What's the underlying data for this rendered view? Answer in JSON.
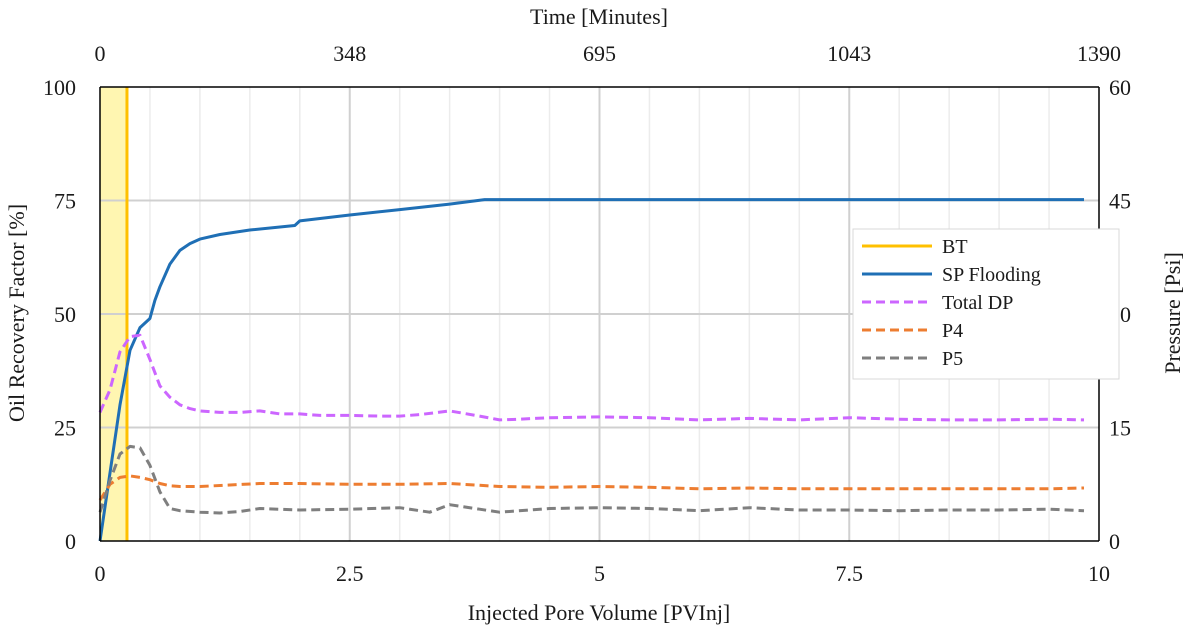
{
  "chart_data": {
    "type": "line",
    "title": "",
    "xlabel": "Injected Pore Volume [PVInj]",
    "ylabel": "Oil Recovery Factor [%]",
    "y2label": "Pressure [Psi]",
    "x2label": "Time [Minutes]",
    "xlim": [
      0,
      10
    ],
    "ylim": [
      0,
      100
    ],
    "y2lim": [
      0,
      60
    ],
    "x_ticks": [
      "0",
      "2.5",
      "5",
      "7.5",
      "10"
    ],
    "y_ticks": [
      "0",
      "25",
      "50",
      "75",
      "100"
    ],
    "y2_ticks": [
      "0",
      "15",
      "30",
      "45",
      "60"
    ],
    "x2_ticks": [
      "0",
      "348",
      "695",
      "1043",
      "1390"
    ],
    "grid": true,
    "legend_position": "right",
    "bt_region": [
      0,
      0.27
    ],
    "series": [
      {
        "name": "BT",
        "axis": "vertical-line",
        "color": "#FFC000",
        "style": "solid",
        "x": [
          0.27
        ]
      },
      {
        "name": "SP Flooding",
        "axis": "left",
        "color": "#1F6FB5",
        "style": "solid",
        "x": [
          0,
          0.1,
          0.2,
          0.3,
          0.4,
          0.5,
          0.55,
          0.6,
          0.7,
          0.8,
          0.9,
          1.0,
          1.2,
          1.5,
          1.95,
          2.0,
          2.5,
          3.0,
          3.5,
          3.85,
          4.0,
          5,
          6,
          7,
          8,
          9,
          9.85
        ],
        "y": [
          0,
          15,
          30,
          42,
          47,
          49,
          53,
          56,
          61,
          64,
          65.5,
          66.5,
          67.5,
          68.5,
          69.5,
          70.5,
          71.8,
          73,
          74.2,
          75.2,
          75.2,
          75.2,
          75.2,
          75.2,
          75.2,
          75.2,
          75.2
        ]
      },
      {
        "name": "Total DP",
        "axis": "right",
        "color": "#CC66FF",
        "style": "dashed",
        "x": [
          0,
          0.1,
          0.2,
          0.3,
          0.4,
          0.5,
          0.6,
          0.7,
          0.8,
          0.9,
          1.0,
          1.2,
          1.4,
          1.6,
          1.8,
          2.0,
          2.2,
          2.5,
          2.8,
          3.0,
          3.2,
          3.5,
          3.8,
          4.0,
          4.2,
          4.5,
          5,
          5.5,
          6,
          6.5,
          7,
          7.5,
          8,
          8.5,
          9,
          9.5,
          9.85
        ],
        "y": [
          17,
          20,
          25,
          27,
          27.2,
          24,
          20.5,
          19,
          18,
          17.5,
          17.2,
          17,
          17,
          17.2,
          16.8,
          16.8,
          16.6,
          16.6,
          16.5,
          16.5,
          16.7,
          17.2,
          16.5,
          16,
          16.1,
          16.3,
          16.4,
          16.3,
          16,
          16.2,
          16,
          16.3,
          16.1,
          16,
          16,
          16.1,
          16
        ]
      },
      {
        "name": "P4",
        "axis": "right",
        "color": "#ED7D31",
        "style": "dashed",
        "x": [
          0,
          0.1,
          0.2,
          0.3,
          0.4,
          0.5,
          0.6,
          0.7,
          0.8,
          1.0,
          1.3,
          1.6,
          2.0,
          2.5,
          3.0,
          3.5,
          4.0,
          4.5,
          5,
          5.5,
          6,
          6.5,
          7,
          7.5,
          8,
          8.5,
          9,
          9.5,
          9.85
        ],
        "y": [
          5.4,
          7.5,
          8.4,
          8.6,
          8.4,
          8.1,
          7.6,
          7.3,
          7.2,
          7.2,
          7.4,
          7.6,
          7.6,
          7.5,
          7.5,
          7.6,
          7.2,
          7.1,
          7.2,
          7.1,
          6.9,
          7.0,
          6.9,
          6.9,
          6.9,
          6.9,
          6.9,
          6.9,
          7.0
        ]
      },
      {
        "name": "P5",
        "axis": "right",
        "color": "#7F7F7F",
        "style": "dashed",
        "x": [
          0,
          0.1,
          0.2,
          0.3,
          0.4,
          0.5,
          0.6,
          0.7,
          0.8,
          1.0,
          1.2,
          1.4,
          1.6,
          2.0,
          2.5,
          3.0,
          3.3,
          3.5,
          3.8,
          4.0,
          4.5,
          5,
          5.5,
          6,
          6.5,
          7,
          7.5,
          8,
          8.5,
          9,
          9.5,
          9.85
        ],
        "y": [
          3.8,
          8,
          11.5,
          12.5,
          12.3,
          10,
          6.5,
          4.3,
          4,
          3.8,
          3.7,
          3.9,
          4.3,
          4.1,
          4.2,
          4.4,
          3.8,
          4.8,
          4.2,
          3.8,
          4.3,
          4.4,
          4.3,
          4.0,
          4.4,
          4.1,
          4.1,
          4.0,
          4.1,
          4.1,
          4.2,
          4.0
        ]
      }
    ]
  }
}
